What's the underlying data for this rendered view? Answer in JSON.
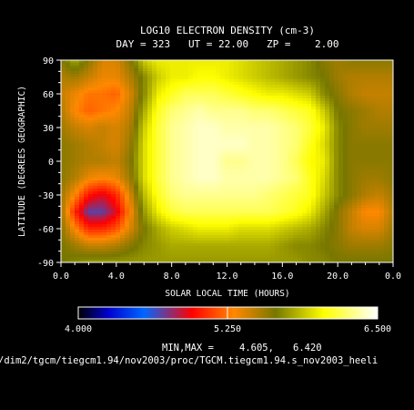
{
  "chart_data": {
    "type": "heatmap",
    "title": "LOG10 ELECTRON DENSITY (cm-3)",
    "subtitle": "DAY = 323   UT = 22.00   ZP =    2.00",
    "xlabel": "SOLAR LOCAL TIME (HOURS)",
    "ylabel": "LATITUDE (DEGREES GEOGRAPHIC)",
    "xlim": [
      0,
      24
    ],
    "ylim": [
      -90,
      90
    ],
    "x_ticks": [
      "0.0",
      "4.0",
      "8.0",
      "12.0",
      "16.0",
      "20.0",
      "0.0"
    ],
    "y_ticks": [
      "-90",
      "-60",
      "-30",
      "0",
      "30",
      "60",
      "90"
    ],
    "colorbar": {
      "min_label": "4.000",
      "mid_label": "5.250",
      "max_label": "6.500",
      "range": [
        4.0,
        6.5
      ],
      "stops": [
        "#000000",
        "#0000cc",
        "#0066ff",
        "#ff0000",
        "#ff8800",
        "#777700",
        "#ffff00",
        "#ffffff"
      ]
    },
    "minmax_label": "MIN,MAX =",
    "min_value": "4.605,",
    "max_value": "6.420",
    "data_min": 4.605,
    "data_max": 6.42,
    "file_path": "/dim2/tgcm/tiegcm1.94/nov2003/proc/TGCM.tiegcm1.94.s_nov2003_heeli",
    "grid": [
      [
        5.6,
        5.8,
        5.6,
        5.4,
        5.4,
        5.6,
        5.9,
        6.0,
        6.0,
        6.0,
        6.0,
        6.0,
        6.0,
        5.95,
        5.9,
        5.85,
        5.8,
        5.75,
        5.7,
        5.6,
        5.55,
        5.6,
        5.6,
        5.6,
        5.6
      ],
      [
        5.5,
        5.55,
        5.45,
        5.35,
        5.35,
        5.5,
        5.7,
        5.9,
        6.0,
        6.0,
        6.05,
        6.05,
        6.0,
        5.95,
        5.9,
        5.85,
        5.8,
        5.75,
        5.7,
        5.65,
        5.55,
        5.5,
        5.5,
        5.5,
        5.5
      ],
      [
        5.45,
        5.35,
        5.25,
        5.25,
        5.2,
        5.4,
        5.7,
        6.0,
        6.1,
        6.2,
        6.2,
        6.2,
        6.15,
        6.1,
        6.05,
        6.0,
        6.0,
        5.95,
        5.9,
        5.7,
        5.6,
        5.5,
        5.45,
        5.45,
        5.45
      ],
      [
        5.5,
        5.3,
        5.2,
        5.25,
        5.3,
        5.45,
        5.8,
        6.1,
        6.25,
        6.3,
        6.35,
        6.3,
        6.3,
        6.3,
        6.25,
        6.25,
        6.2,
        6.15,
        6.1,
        5.9,
        5.65,
        5.6,
        5.55,
        5.5,
        5.5
      ],
      [
        5.55,
        5.45,
        5.4,
        5.45,
        5.4,
        5.5,
        5.9,
        6.15,
        6.3,
        6.35,
        6.4,
        6.4,
        6.35,
        6.35,
        6.35,
        6.35,
        6.3,
        6.25,
        6.15,
        6.0,
        5.7,
        5.6,
        5.55,
        5.55,
        5.55
      ],
      [
        5.6,
        5.55,
        5.5,
        5.45,
        5.4,
        5.55,
        5.95,
        6.15,
        6.3,
        6.35,
        6.4,
        6.4,
        6.4,
        6.4,
        6.35,
        6.35,
        6.3,
        6.25,
        6.1,
        5.95,
        5.7,
        5.6,
        5.6,
        5.6,
        5.6
      ],
      [
        5.6,
        5.55,
        5.5,
        5.5,
        5.45,
        5.6,
        5.95,
        6.15,
        6.3,
        6.35,
        6.4,
        6.4,
        6.3,
        6.3,
        6.35,
        6.35,
        6.3,
        6.2,
        6.05,
        6.0,
        5.7,
        5.6,
        5.6,
        5.6,
        5.6
      ],
      [
        5.6,
        5.5,
        5.35,
        5.3,
        5.35,
        5.55,
        5.95,
        6.15,
        6.3,
        6.35,
        6.4,
        6.4,
        6.35,
        6.35,
        6.35,
        6.35,
        6.3,
        6.25,
        6.1,
        5.95,
        5.7,
        5.6,
        5.55,
        5.55,
        5.6
      ],
      [
        5.55,
        5.3,
        5.0,
        4.9,
        5.05,
        5.4,
        5.85,
        6.1,
        6.25,
        6.3,
        6.3,
        6.3,
        6.3,
        6.3,
        6.3,
        6.25,
        6.2,
        6.15,
        6.1,
        5.9,
        5.7,
        5.6,
        5.5,
        5.45,
        5.55
      ],
      [
        5.55,
        5.05,
        4.7,
        4.7,
        4.9,
        5.3,
        5.75,
        6.0,
        6.15,
        6.2,
        6.2,
        6.2,
        6.2,
        6.2,
        6.2,
        6.2,
        6.15,
        6.1,
        6.0,
        5.8,
        5.6,
        5.45,
        5.3,
        5.3,
        5.5
      ],
      [
        5.6,
        5.3,
        5.05,
        5.05,
        5.15,
        5.4,
        5.65,
        5.8,
        5.9,
        5.95,
        6.0,
        6.0,
        6.0,
        5.95,
        5.95,
        5.95,
        5.9,
        5.85,
        5.8,
        5.7,
        5.6,
        5.45,
        5.4,
        5.4,
        5.55
      ],
      [
        5.65,
        5.55,
        5.45,
        5.45,
        5.5,
        5.6,
        5.7,
        5.75,
        5.8,
        5.8,
        5.8,
        5.8,
        5.8,
        5.8,
        5.8,
        5.8,
        5.75,
        5.7,
        5.7,
        5.65,
        5.6,
        5.55,
        5.55,
        5.55,
        5.6
      ],
      [
        5.65,
        5.7,
        5.75,
        5.75,
        5.75,
        5.75,
        5.75,
        5.75,
        5.75,
        5.75,
        5.75,
        5.75,
        5.75,
        5.75,
        5.75,
        5.75,
        5.75,
        5.75,
        5.7,
        5.7,
        5.65,
        5.65,
        5.65,
        5.65,
        5.65
      ]
    ]
  }
}
